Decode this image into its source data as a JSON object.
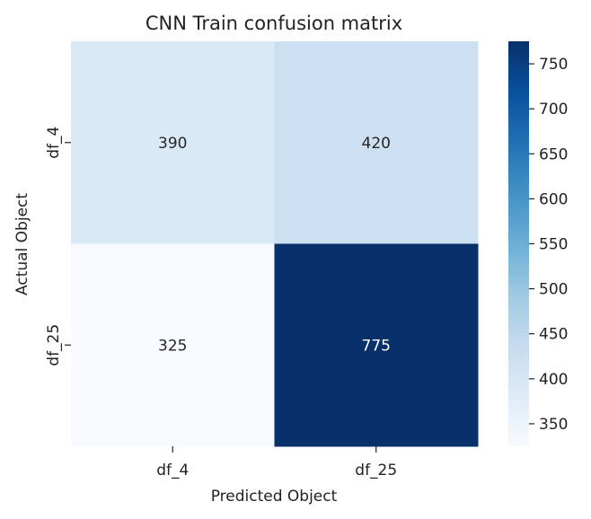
{
  "chart_data": {
    "type": "heatmap",
    "title": "CNN Train confusion matrix",
    "xlabel": "Predicted Object",
    "ylabel": "Actual Object",
    "x_categories": [
      "df_4",
      "df_25"
    ],
    "y_categories": [
      "df_4",
      "df_25"
    ],
    "values": [
      [
        390,
        420
      ],
      [
        325,
        775
      ]
    ],
    "colormap": "Blues",
    "colorbar": {
      "range": [
        325,
        775
      ],
      "ticks": [
        350,
        400,
        450,
        500,
        550,
        600,
        650,
        700,
        750
      ]
    },
    "grid": false
  }
}
